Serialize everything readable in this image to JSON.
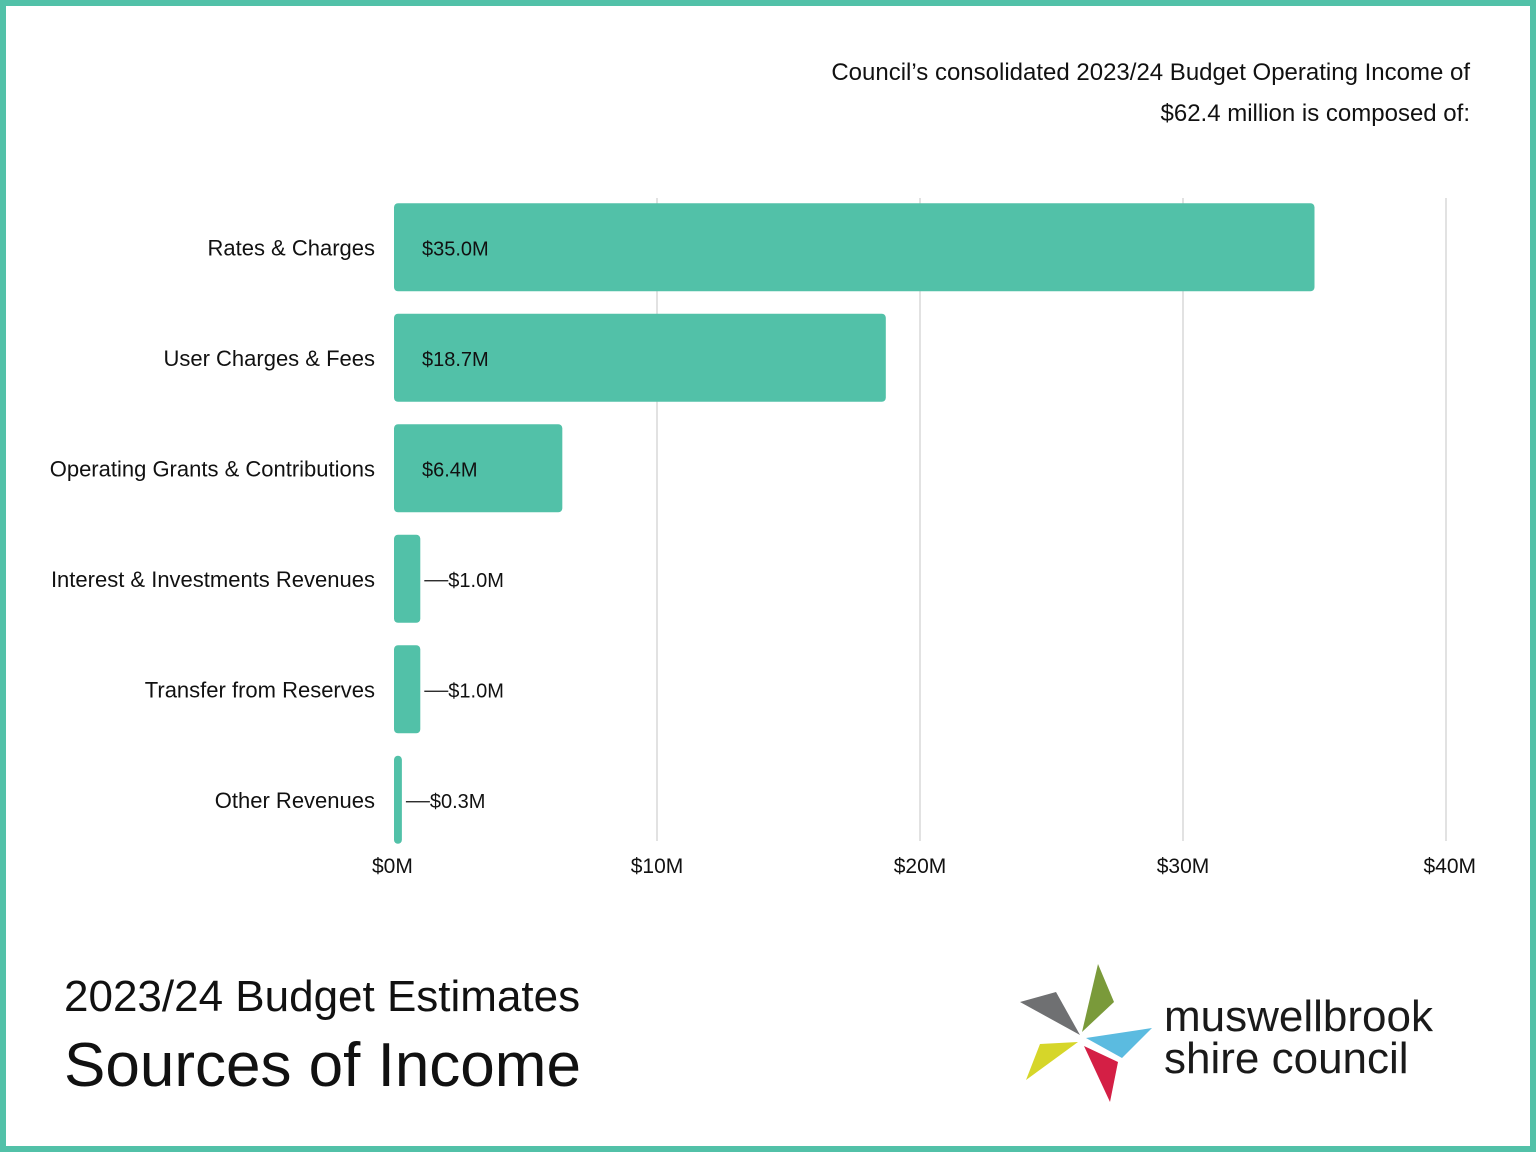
{
  "intro": {
    "line1": "Council’s consolidated 2023/24 Budget Operating Income of",
    "line2": "$62.4 million is composed of:"
  },
  "heading": {
    "line1": "2023/24 Budget Estimates",
    "line2": "Sources of Income"
  },
  "logo": {
    "line1": "muswellbrook",
    "line2": "shire council",
    "colors": [
      "#6f7072",
      "#7a9a3a",
      "#5bbbe0",
      "#d6d629",
      "#d41f45"
    ]
  },
  "colors": {
    "accent": "#52c1a8",
    "bar": "#52c1a8",
    "grid": "#d9d9d9"
  },
  "chart_data": {
    "type": "bar",
    "orientation": "horizontal",
    "categories": [
      "Rates & Charges",
      "User Charges & Fees",
      "Operating Grants & Contributions",
      "Interest & Investments Revenues",
      "Transfer from Reserves",
      "Other Revenues"
    ],
    "values": [
      35.0,
      18.7,
      6.4,
      1.0,
      1.0,
      0.3
    ],
    "value_labels": [
      "$35.0M",
      "$18.7M",
      "$6.4M",
      "$1.0M",
      "$1.0M",
      "$0.3M"
    ],
    "x_ticks": [
      0,
      10,
      20,
      30,
      40
    ],
    "x_tick_labels": [
      "$0M",
      "$10M",
      "$20M",
      "$30M",
      "$40M"
    ],
    "xlim": [
      0,
      40
    ],
    "grid": true,
    "legend": "none"
  }
}
